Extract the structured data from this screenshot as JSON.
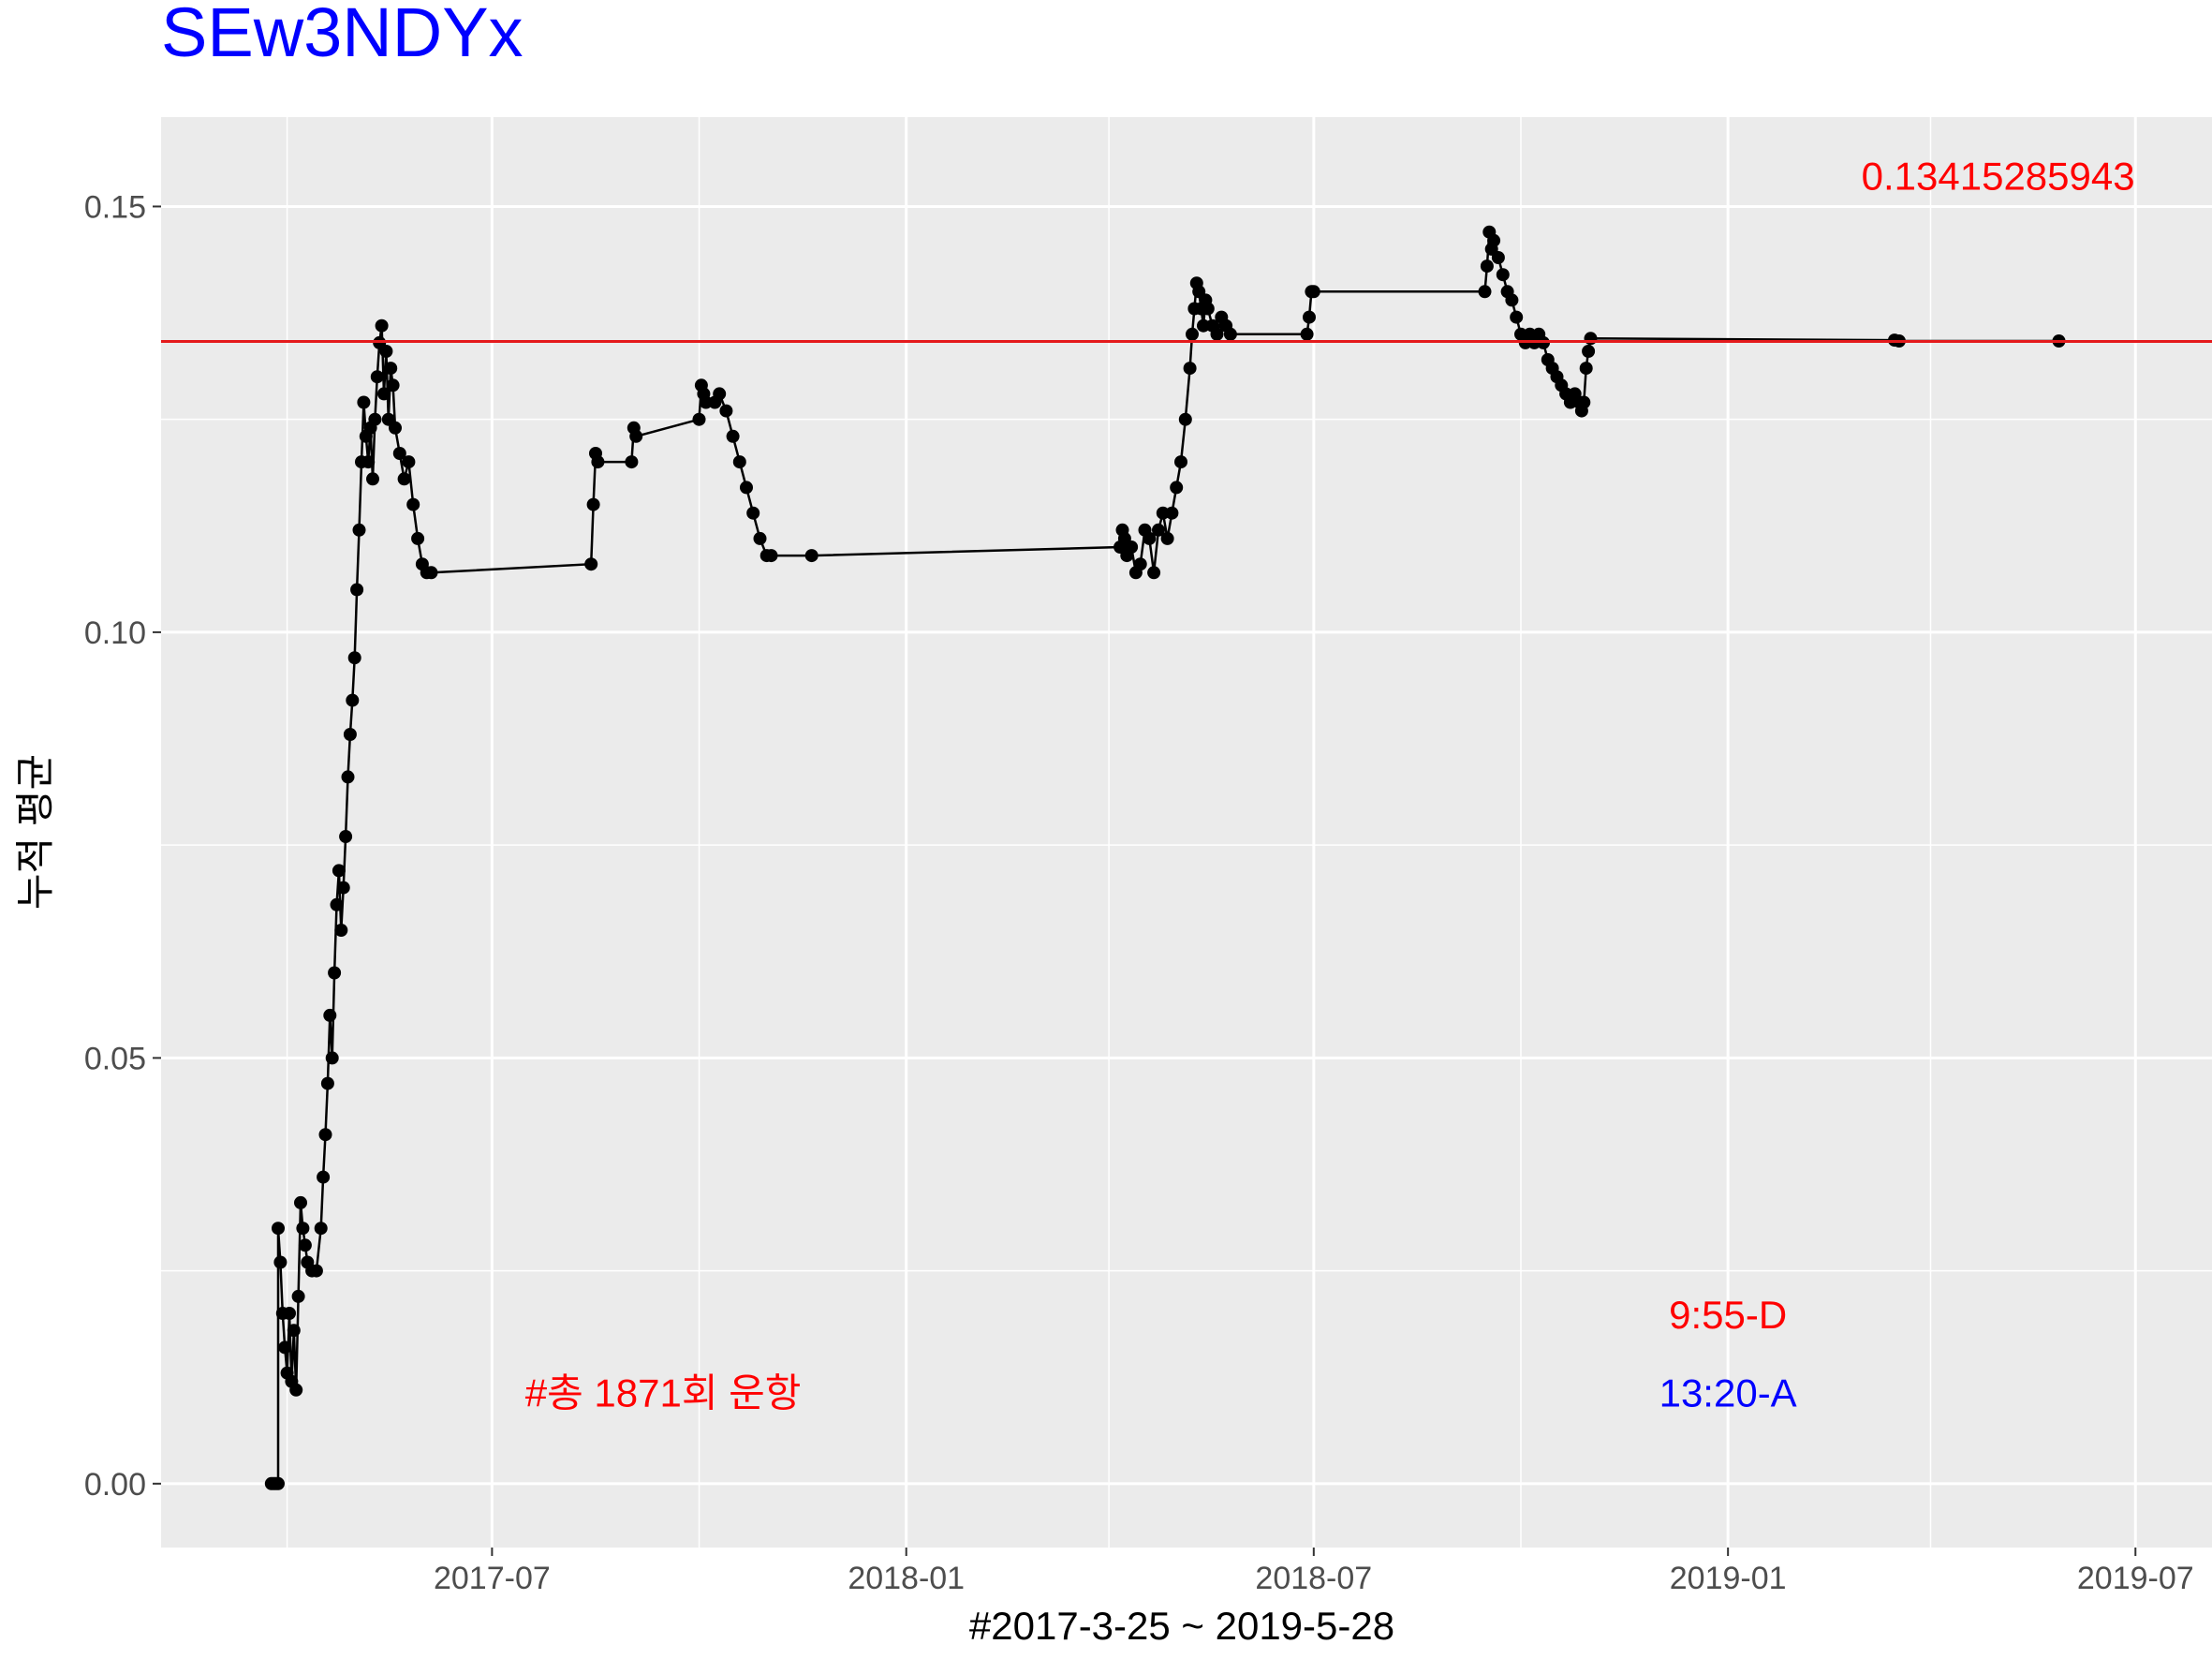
{
  "chart_data": {
    "type": "line",
    "title": "SEw3NDYx",
    "title_color": "#0000FF",
    "xlabel": "#2017-3-25 ~ 2019-5-28",
    "ylabel": "누적 평균",
    "x_type": "date",
    "xlim": [
      "2017-02-04",
      "2019-08-04"
    ],
    "ylim": [
      -0.0075,
      0.1605
    ],
    "x_ticks": [
      {
        "date": "2017-07-01",
        "label": "2017-07"
      },
      {
        "date": "2018-01-01",
        "label": "2018-01"
      },
      {
        "date": "2018-07-01",
        "label": "2018-07"
      },
      {
        "date": "2019-01-01",
        "label": "2019-01"
      },
      {
        "date": "2019-07-01",
        "label": "2019-07"
      }
    ],
    "y_ticks": [
      {
        "value": 0.0,
        "label": "0.00"
      },
      {
        "value": 0.05,
        "label": "0.05"
      },
      {
        "value": 0.1,
        "label": "0.10"
      },
      {
        "value": 0.15,
        "label": "0.15"
      }
    ],
    "grid": true,
    "background": "#EBEBEB",
    "series": [
      {
        "color": "#000000",
        "points": [
          [
            "2017-03-25",
            0.0
          ],
          [
            "2017-03-26",
            0.0
          ],
          [
            "2017-03-27",
            0.0
          ],
          [
            "2017-03-28",
            0.0
          ],
          [
            "2017-03-28",
            0.03
          ],
          [
            "2017-03-29",
            0.026
          ],
          [
            "2017-03-30",
            0.02
          ],
          [
            "2017-03-31",
            0.016
          ],
          [
            "2017-04-01",
            0.013
          ],
          [
            "2017-04-02",
            0.02
          ],
          [
            "2017-04-03",
            0.012
          ],
          [
            "2017-04-04",
            0.018
          ],
          [
            "2017-04-05",
            0.011
          ],
          [
            "2017-04-06",
            0.022
          ],
          [
            "2017-04-07",
            0.033
          ],
          [
            "2017-04-08",
            0.03
          ],
          [
            "2017-04-09",
            0.028
          ],
          [
            "2017-04-10",
            0.026
          ],
          [
            "2017-04-12",
            0.025
          ],
          [
            "2017-04-14",
            0.025
          ],
          [
            "2017-04-16",
            0.03
          ],
          [
            "2017-04-17",
            0.036
          ],
          [
            "2017-04-18",
            0.041
          ],
          [
            "2017-04-19",
            0.047
          ],
          [
            "2017-04-20",
            0.055
          ],
          [
            "2017-04-21",
            0.05
          ],
          [
            "2017-04-22",
            0.06
          ],
          [
            "2017-04-23",
            0.068
          ],
          [
            "2017-04-24",
            0.072
          ],
          [
            "2017-04-25",
            0.065
          ],
          [
            "2017-04-26",
            0.07
          ],
          [
            "2017-04-27",
            0.076
          ],
          [
            "2017-04-28",
            0.083
          ],
          [
            "2017-04-29",
            0.088
          ],
          [
            "2017-04-30",
            0.092
          ],
          [
            "2017-05-01",
            0.097
          ],
          [
            "2017-05-02",
            0.105
          ],
          [
            "2017-05-03",
            0.112
          ],
          [
            "2017-05-04",
            0.12
          ],
          [
            "2017-05-05",
            0.127
          ],
          [
            "2017-05-06",
            0.123
          ],
          [
            "2017-05-07",
            0.12
          ],
          [
            "2017-05-08",
            0.124
          ],
          [
            "2017-05-09",
            0.118
          ],
          [
            "2017-05-10",
            0.125
          ],
          [
            "2017-05-11",
            0.13
          ],
          [
            "2017-05-12",
            0.134
          ],
          [
            "2017-05-13",
            0.136
          ],
          [
            "2017-05-14",
            0.128
          ],
          [
            "2017-05-15",
            0.133
          ],
          [
            "2017-05-16",
            0.125
          ],
          [
            "2017-05-17",
            0.131
          ],
          [
            "2017-05-18",
            0.129
          ],
          [
            "2017-05-19",
            0.124
          ],
          [
            "2017-05-21",
            0.121
          ],
          [
            "2017-05-23",
            0.118
          ],
          [
            "2017-05-25",
            0.12
          ],
          [
            "2017-05-27",
            0.115
          ],
          [
            "2017-05-29",
            0.111
          ],
          [
            "2017-05-31",
            0.108
          ],
          [
            "2017-06-02",
            0.107
          ],
          [
            "2017-06-04",
            0.107
          ],
          [
            "2017-08-14",
            0.108
          ],
          [
            "2017-08-15",
            0.115
          ],
          [
            "2017-08-16",
            0.121
          ],
          [
            "2017-08-17",
            0.12
          ],
          [
            "2017-09-01",
            0.12
          ],
          [
            "2017-09-02",
            0.124
          ],
          [
            "2017-09-03",
            0.123
          ],
          [
            "2017-10-01",
            0.125
          ],
          [
            "2017-10-02",
            0.129
          ],
          [
            "2017-10-03",
            0.128
          ],
          [
            "2017-10-04",
            0.127
          ],
          [
            "2017-10-08",
            0.127
          ],
          [
            "2017-10-10",
            0.128
          ],
          [
            "2017-10-13",
            0.126
          ],
          [
            "2017-10-16",
            0.123
          ],
          [
            "2017-10-19",
            0.12
          ],
          [
            "2017-10-22",
            0.117
          ],
          [
            "2017-10-25",
            0.114
          ],
          [
            "2017-10-28",
            0.111
          ],
          [
            "2017-10-31",
            0.109
          ],
          [
            "2017-11-02",
            0.109
          ],
          [
            "2017-11-20",
            0.109
          ],
          [
            "2018-04-06",
            0.11
          ],
          [
            "2018-04-07",
            0.112
          ],
          [
            "2018-04-08",
            0.111
          ],
          [
            "2018-04-09",
            0.109
          ],
          [
            "2018-04-11",
            0.11
          ],
          [
            "2018-04-13",
            0.107
          ],
          [
            "2018-04-15",
            0.108
          ],
          [
            "2018-04-17",
            0.112
          ],
          [
            "2018-04-19",
            0.111
          ],
          [
            "2018-04-21",
            0.107
          ],
          [
            "2018-04-23",
            0.112
          ],
          [
            "2018-04-25",
            0.114
          ],
          [
            "2018-04-27",
            0.111
          ],
          [
            "2018-04-29",
            0.114
          ],
          [
            "2018-05-01",
            0.117
          ],
          [
            "2018-05-03",
            0.12
          ],
          [
            "2018-05-05",
            0.125
          ],
          [
            "2018-05-07",
            0.131
          ],
          [
            "2018-05-08",
            0.135
          ],
          [
            "2018-05-09",
            0.138
          ],
          [
            "2018-05-10",
            0.141
          ],
          [
            "2018-05-11",
            0.14
          ],
          [
            "2018-05-12",
            0.138
          ],
          [
            "2018-05-13",
            0.136
          ],
          [
            "2018-05-14",
            0.139
          ],
          [
            "2018-05-15",
            0.138
          ],
          [
            "2018-05-17",
            0.136
          ],
          [
            "2018-05-19",
            0.135
          ],
          [
            "2018-05-21",
            0.137
          ],
          [
            "2018-05-23",
            0.136
          ],
          [
            "2018-05-25",
            0.135
          ],
          [
            "2018-06-28",
            0.135
          ],
          [
            "2018-06-29",
            0.137
          ],
          [
            "2018-06-30",
            0.14
          ],
          [
            "2018-07-01",
            0.14
          ],
          [
            "2018-09-15",
            0.14
          ],
          [
            "2018-09-16",
            0.143
          ],
          [
            "2018-09-17",
            0.147
          ],
          [
            "2018-09-18",
            0.145
          ],
          [
            "2018-09-19",
            0.146
          ],
          [
            "2018-09-21",
            0.144
          ],
          [
            "2018-09-23",
            0.142
          ],
          [
            "2018-09-25",
            0.14
          ],
          [
            "2018-09-27",
            0.139
          ],
          [
            "2018-09-29",
            0.137
          ],
          [
            "2018-10-01",
            0.135
          ],
          [
            "2018-10-03",
            0.134
          ],
          [
            "2018-10-05",
            0.135
          ],
          [
            "2018-10-07",
            0.134
          ],
          [
            "2018-10-09",
            0.135
          ],
          [
            "2018-10-11",
            0.134
          ],
          [
            "2018-10-13",
            0.132
          ],
          [
            "2018-10-15",
            0.131
          ],
          [
            "2018-10-17",
            0.13
          ],
          [
            "2018-10-19",
            0.129
          ],
          [
            "2018-10-21",
            0.128
          ],
          [
            "2018-10-23",
            0.127
          ],
          [
            "2018-10-25",
            0.128
          ],
          [
            "2018-10-27",
            0.127
          ],
          [
            "2018-10-28",
            0.126
          ],
          [
            "2018-10-29",
            0.127
          ],
          [
            "2018-10-30",
            0.131
          ],
          [
            "2018-10-31",
            0.133
          ],
          [
            "2018-11-01",
            0.1345
          ],
          [
            "2019-03-16",
            0.1343
          ],
          [
            "2019-03-18",
            0.1342
          ],
          [
            "2019-05-28",
            0.1342
          ]
        ]
      }
    ],
    "hline": {
      "value": 0.13415285943,
      "color": "#E41A1C"
    },
    "annotations": [
      {
        "text": "0.13415285943",
        "x": "2019-05-01",
        "y": 0.1535,
        "color": "#FF0000"
      },
      {
        "text": "9:55-D",
        "x": "2019-01-01",
        "y": 0.0198,
        "color": "#FF0000"
      },
      {
        "text": "13:20-A",
        "x": "2019-01-01",
        "y": 0.0106,
        "color": "#0000FF"
      },
      {
        "text": "#총 1871회 운항",
        "x": "2017-09-15",
        "y": 0.0106,
        "color": "#FF0000"
      }
    ]
  }
}
